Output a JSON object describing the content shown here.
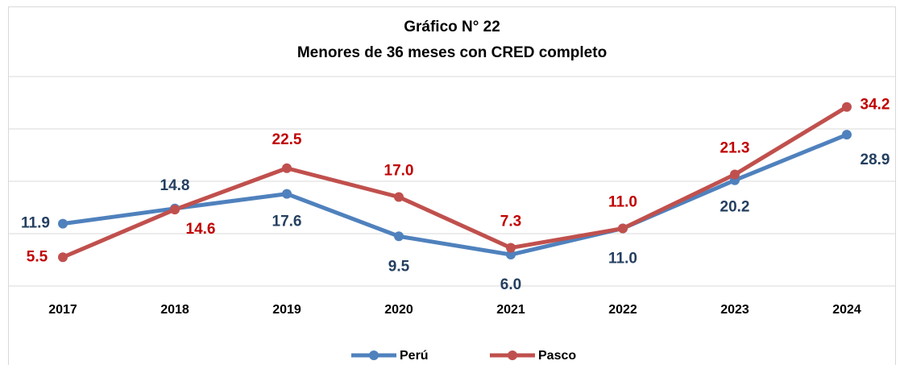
{
  "chart_data": {
    "type": "line",
    "title": "Gráfico N° 22",
    "subtitle": "Menores de 36 meses con CRED completo",
    "categories": [
      "2017",
      "2018",
      "2019",
      "2020",
      "2021",
      "2022",
      "2023",
      "2024"
    ],
    "series": [
      {
        "name": "Perú",
        "color": "#4f81bd",
        "label_color": "#243f60",
        "values": [
          11.9,
          14.8,
          17.6,
          9.5,
          6.0,
          11.0,
          20.2,
          28.9
        ],
        "value_labels": [
          "11.9",
          "14.8",
          "17.6",
          "9.5",
          "6.0",
          "11.0",
          "20.2",
          "28.9"
        ]
      },
      {
        "name": "Pasco",
        "color": "#c0504d",
        "label_color": "#c00000",
        "values": [
          5.5,
          14.6,
          22.5,
          17.0,
          7.3,
          11.0,
          21.3,
          34.2
        ],
        "value_labels": [
          "5.5",
          "14.6",
          "22.5",
          "17.0",
          "7.3",
          "11.0",
          "21.3",
          "34.2"
        ]
      }
    ],
    "ylim": [
      0,
      40
    ],
    "yticks": [
      0,
      10,
      20,
      30,
      40
    ],
    "grid": true,
    "legend": "bottom"
  }
}
